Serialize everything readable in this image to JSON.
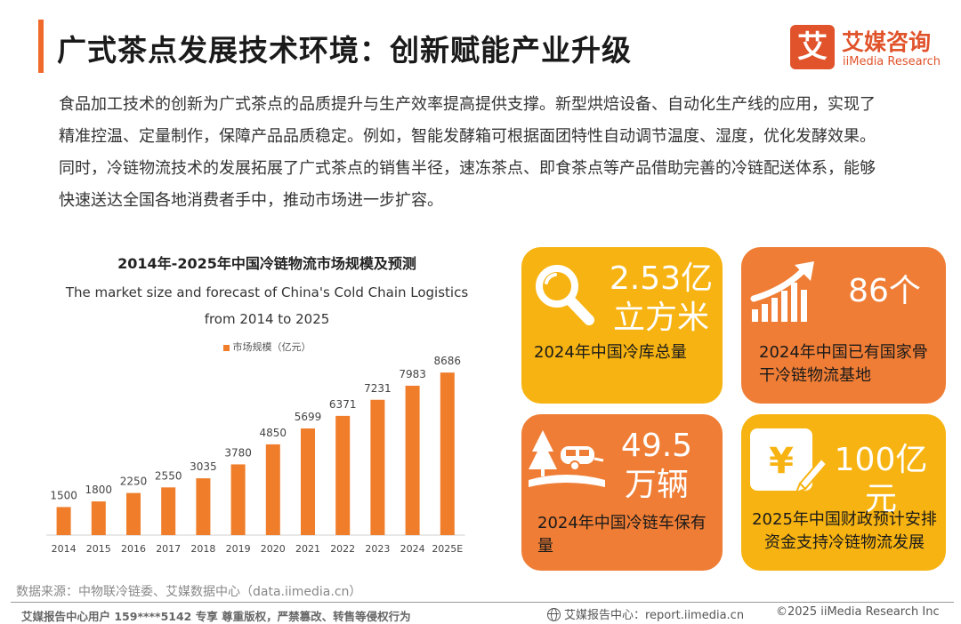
{
  "header": {
    "title": "广式茶点发展技术环境：创新赋能产业升级",
    "logo_mark": "艾",
    "logo_cn": "艾媒咨询",
    "logo_en": "iiMedia Research",
    "accent_color": "#ef6a2a"
  },
  "intro_text": "食品加工技术的创新为广式茶点的品质提升与生产效率提高提供支撑。新型烘焙设备、自动化生产线的应用，实现了精准控温、定量制作，保障产品品质稳定。例如，智能发酵箱可根据面团特性自动调节温度、湿度，优化发酵效果。同时，冷链物流技术的发展拓展了广式茶点的销售半径，速冻茶点、即食茶点等产品借助完善的冷链配送体系，能够快速送达全国各地消费者手中，推动市场进一步扩容。",
  "chart_data": {
    "type": "bar",
    "title": "2014年-2025年中国冷链物流市场规模及预测",
    "subtitle": "The market size and forecast of China's Cold Chain Logistics from 2014 to 2025",
    "legend": "市场规模（亿元）",
    "legend_placement": "top-center",
    "categories": [
      "2014",
      "2015",
      "2016",
      "2017",
      "2018",
      "2019",
      "2020",
      "2021",
      "2022",
      "2023",
      "2024",
      "2025E"
    ],
    "series": [
      {
        "name": "市场规模（亿元）",
        "values": [
          1500,
          1800,
          2250,
          2550,
          3035,
          3780,
          4850,
          5699,
          6371,
          7231,
          7983,
          8686
        ]
      }
    ],
    "ylim": [
      0,
      9500
    ],
    "grid": false,
    "bar_color": "#ef7d2a"
  },
  "stats": [
    {
      "value_line1": "2.53亿",
      "value_line2": "立方米",
      "desc": "2024年中国冷库总量",
      "icon": "magnifier-icon",
      "color": "#f7b311"
    },
    {
      "value_line1": "86个",
      "value_line2": "",
      "desc": "2024年中国已有国家骨干冷链物流基地",
      "icon": "growth-chart-icon",
      "color": "#ef7d35"
    },
    {
      "value_line1": "49.5",
      "value_line2": "万辆",
      "desc": "2024年中国冷链车保有量",
      "icon": "camper-trailer-icon",
      "color": "#ef7d35"
    },
    {
      "value_line1": "100亿元",
      "value_line2": "",
      "desc": "2025年中国财政预计安排资金支持冷链物流发展",
      "icon": "yuan-document-icon",
      "color": "#f7b311"
    }
  ],
  "source": "数据来源：中物联冷链委、艾媒数据中心（data.iimedia.cn）",
  "footer": {
    "left": "艾媒报告中心用户 159****5142 专享 尊重版权，严禁篡改、转售等侵权行为",
    "middle": "艾媒报告中心：report.iimedia.cn",
    "right": "©2025  iiMedia Research  Inc"
  }
}
